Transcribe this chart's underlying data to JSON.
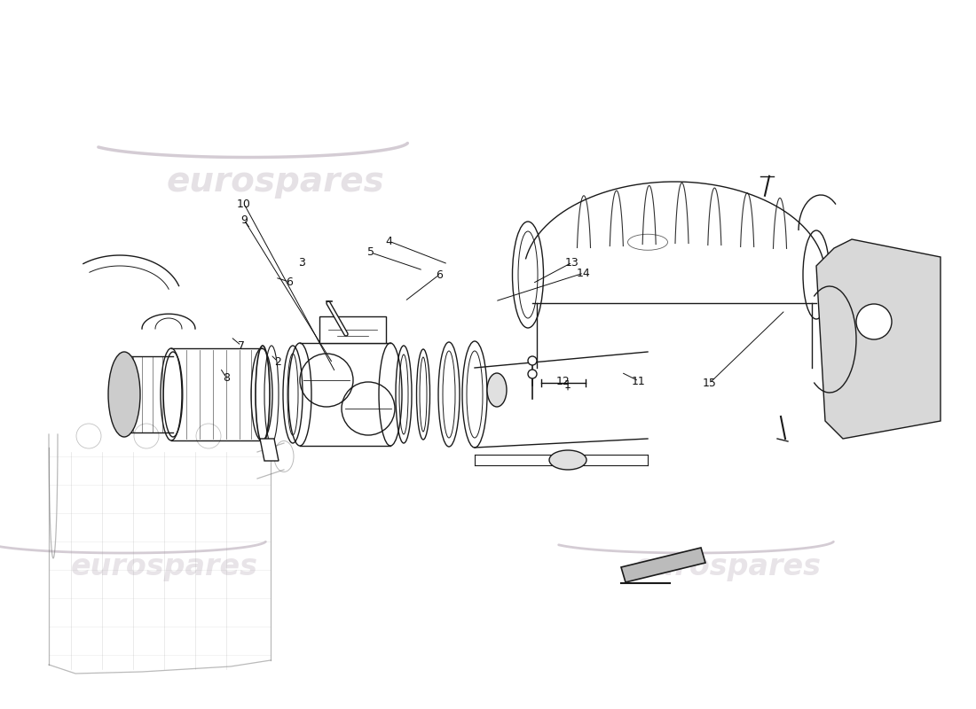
{
  "background_color": "#ffffff",
  "line_color": "#1a1a1a",
  "watermark_color_top": "#d8d0d8",
  "watermark_color_bot": "#c8c0c8",
  "watermark_text": "eurospares",
  "part_numbers": [
    "1",
    "2",
    "3",
    "4",
    "5",
    "6",
    "6",
    "7",
    "8",
    "9",
    "10",
    "11",
    "12",
    "13",
    "14",
    "15"
  ],
  "lw": 1.0
}
